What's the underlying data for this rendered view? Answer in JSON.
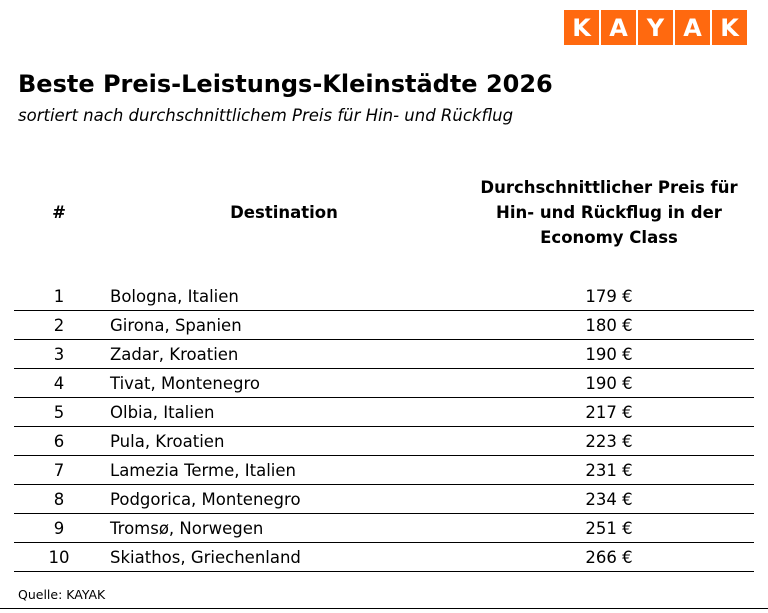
{
  "logo": {
    "name": "KAYAK",
    "letters": [
      "K",
      "A",
      "Y",
      "A",
      "K"
    ],
    "tile_color": "#ff690f",
    "letter_color": "#ffffff"
  },
  "title": "Beste Preis-Leistungs-Kleinstädte 2026",
  "subtitle": "sortiert nach durchschnittlichem Preis für Hin- und Rückflug",
  "table": {
    "headers": {
      "rank": "#",
      "destination": "Destination",
      "price_lines": [
        "Durchschnittlicher Preis für",
        "Hin- und Rückflug in der",
        "Economy Class"
      ]
    },
    "rows": [
      {
        "rank": "1",
        "destination": "Bologna, Italien",
        "price": "179 €"
      },
      {
        "rank": "2",
        "destination": "Girona, Spanien",
        "price": "180 €"
      },
      {
        "rank": "3",
        "destination": "Zadar, Kroatien",
        "price": "190 €"
      },
      {
        "rank": "4",
        "destination": "Tivat, Montenegro",
        "price": "190 €"
      },
      {
        "rank": "5",
        "destination": "Olbia, Italien",
        "price": "217 €"
      },
      {
        "rank": "6",
        "destination": "Pula, Kroatien",
        "price": "223 €"
      },
      {
        "rank": "7",
        "destination": "Lamezia Terme, Italien",
        "price": "231 €"
      },
      {
        "rank": "8",
        "destination": "Podgorica, Montenegro",
        "price": "234 €"
      },
      {
        "rank": "9",
        "destination": "Tromsø, Norwegen",
        "price": "251 €"
      },
      {
        "rank": "10",
        "destination": "Skiathos, Griechenland",
        "price": "266 €"
      }
    ]
  },
  "source": "Quelle: KAYAK",
  "chart_data": {
    "type": "table",
    "title": "Beste Preis-Leistungs-Kleinstädte 2026",
    "subtitle": "sortiert nach durchschnittlichem Preis für Hin- und Rückflug",
    "columns": [
      "#",
      "Destination",
      "Durchschnittlicher Preis für Hin- und Rückflug in der Economy Class"
    ],
    "rows": [
      [
        1,
        "Bologna, Italien",
        "179 €"
      ],
      [
        2,
        "Girona, Spanien",
        "180 €"
      ],
      [
        3,
        "Zadar, Kroatien",
        "190 €"
      ],
      [
        4,
        "Tivat, Montenegro",
        "190 €"
      ],
      [
        5,
        "Olbia, Italien",
        "217 €"
      ],
      [
        6,
        "Pula, Kroatien",
        "223 €"
      ],
      [
        7,
        "Lamezia Terme, Italien",
        "231 €"
      ],
      [
        8,
        "Podgorica, Montenegro",
        "234 €"
      ],
      [
        9,
        "Tromsø, Norwegen",
        "251 €"
      ],
      [
        10,
        "Skiathos, Griechenland",
        "266 €"
      ]
    ],
    "values_eur": [
      179,
      180,
      190,
      190,
      217,
      223,
      231,
      234,
      251,
      266
    ],
    "currency": "EUR",
    "source": "KAYAK"
  }
}
